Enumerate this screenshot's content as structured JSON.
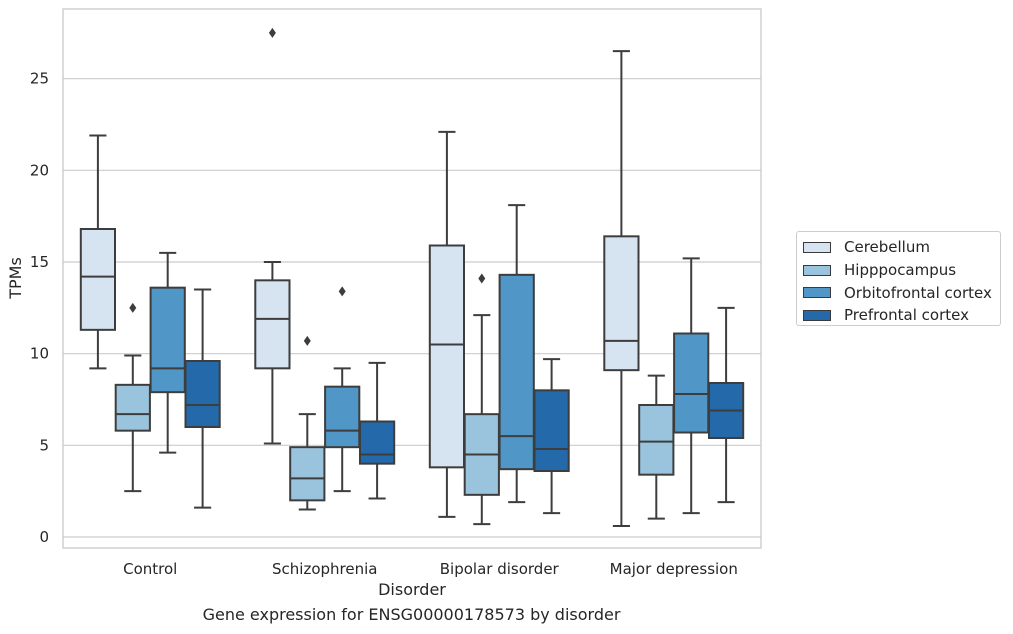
{
  "caption": "Gene expression for ENSG00000178573 by disorder",
  "chart_data": {
    "type": "box",
    "xlabel": "Disorder",
    "ylabel": "TPMs",
    "ylim": [
      -0.6,
      28.8
    ],
    "yticks": [
      0,
      5,
      10,
      15,
      20,
      25
    ],
    "grid": "horizontal",
    "legend_position": "right",
    "categories": [
      "Control",
      "Schizophrenia",
      "Bipolar disorder",
      "Major depression"
    ],
    "series": [
      {
        "name": "Cerebellum",
        "color": "#d6e4f2",
        "boxes": [
          {
            "whisker_low": 9.2,
            "q1": 11.3,
            "median": 14.2,
            "q3": 16.8,
            "whisker_high": 21.9,
            "outliers": []
          },
          {
            "whisker_low": 5.1,
            "q1": 9.2,
            "median": 11.9,
            "q3": 14.0,
            "whisker_high": 15.0,
            "outliers": [
              27.5
            ]
          },
          {
            "whisker_low": 1.1,
            "q1": 3.8,
            "median": 10.5,
            "q3": 15.9,
            "whisker_high": 22.1,
            "outliers": []
          },
          {
            "whisker_low": 0.6,
            "q1": 9.1,
            "median": 10.7,
            "q3": 16.4,
            "whisker_high": 26.5,
            "outliers": []
          }
        ]
      },
      {
        "name": "Hipppocampus",
        "color": "#9ac4de",
        "boxes": [
          {
            "whisker_low": 2.5,
            "q1": 5.8,
            "median": 6.7,
            "q3": 8.3,
            "whisker_high": 9.9,
            "outliers": [
              12.5
            ]
          },
          {
            "whisker_low": 1.5,
            "q1": 2.0,
            "median": 3.2,
            "q3": 4.9,
            "whisker_high": 6.7,
            "outliers": [
              10.7
            ]
          },
          {
            "whisker_low": 0.7,
            "q1": 2.3,
            "median": 4.5,
            "q3": 6.7,
            "whisker_high": 12.1,
            "outliers": [
              14.1
            ]
          },
          {
            "whisker_low": 1.0,
            "q1": 3.4,
            "median": 5.2,
            "q3": 7.2,
            "whisker_high": 8.8,
            "outliers": []
          }
        ]
      },
      {
        "name": "Orbitofrontal cortex",
        "color": "#5096c6",
        "boxes": [
          {
            "whisker_low": 4.6,
            "q1": 7.9,
            "median": 9.2,
            "q3": 13.6,
            "whisker_high": 15.5,
            "outliers": []
          },
          {
            "whisker_low": 2.5,
            "q1": 4.9,
            "median": 5.8,
            "q3": 8.2,
            "whisker_high": 9.2,
            "outliers": [
              13.4
            ]
          },
          {
            "whisker_low": 1.9,
            "q1": 3.7,
            "median": 5.5,
            "q3": 14.3,
            "whisker_high": 18.1,
            "outliers": []
          },
          {
            "whisker_low": 1.3,
            "q1": 5.7,
            "median": 7.8,
            "q3": 11.1,
            "whisker_high": 15.2,
            "outliers": []
          }
        ]
      },
      {
        "name": "Prefrontal cortex",
        "color": "#2469a9",
        "boxes": [
          {
            "whisker_low": 1.6,
            "q1": 6.0,
            "median": 7.2,
            "q3": 9.6,
            "whisker_high": 13.5,
            "outliers": []
          },
          {
            "whisker_low": 2.1,
            "q1": 4.0,
            "median": 4.5,
            "q3": 6.3,
            "whisker_high": 9.5,
            "outliers": []
          },
          {
            "whisker_low": 1.3,
            "q1": 3.6,
            "median": 4.8,
            "q3": 8.0,
            "whisker_high": 9.7,
            "outliers": []
          },
          {
            "whisker_low": 1.9,
            "q1": 5.4,
            "median": 6.9,
            "q3": 8.4,
            "whisker_high": 12.5,
            "outliers": []
          }
        ]
      }
    ]
  }
}
